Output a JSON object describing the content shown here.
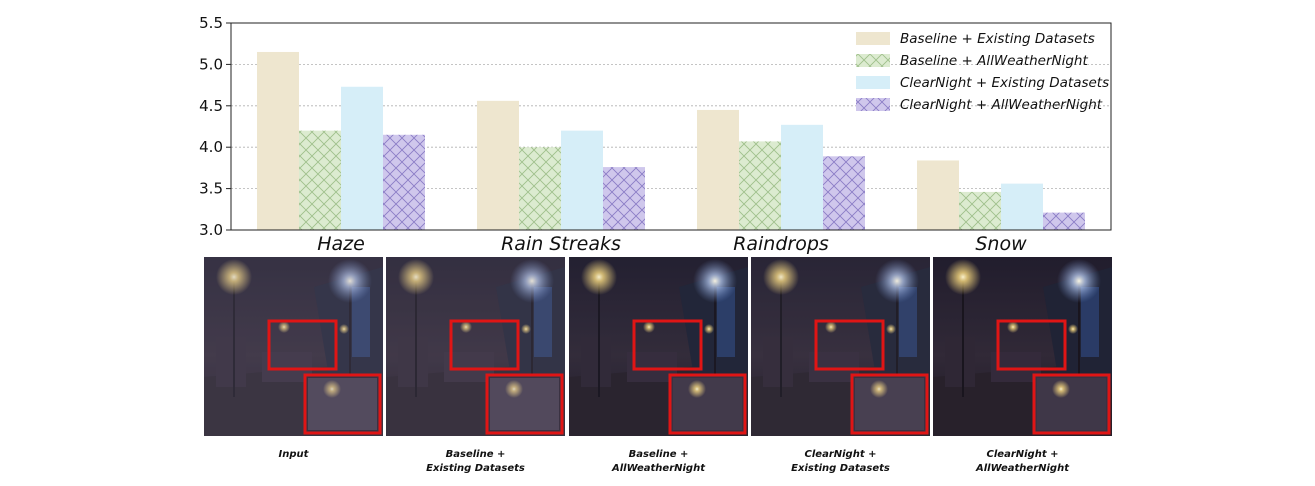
{
  "chart_data": {
    "type": "bar",
    "categories": [
      "Haze",
      "Rain Streaks",
      "Raindrops",
      "Snow"
    ],
    "series": [
      {
        "name": "Baseline + Existing Datasets",
        "values": [
          5.15,
          4.56,
          4.45,
          3.84
        ],
        "color": "#eee6cf",
        "pattern": "none"
      },
      {
        "name": "Baseline + AllWeatherNight",
        "values": [
          4.2,
          4.0,
          4.07,
          3.46
        ],
        "color": "#dcebd0",
        "pattern": "crosshatch"
      },
      {
        "name": "ClearNight + Existing Datasets",
        "values": [
          4.73,
          4.2,
          4.27,
          3.56
        ],
        "color": "#d6eef8",
        "pattern": "none"
      },
      {
        "name": "ClearNight + AllWeatherNight",
        "values": [
          4.15,
          3.76,
          3.89,
          3.21
        ],
        "color": "#cfc7ec",
        "pattern": "crosshatch"
      }
    ],
    "yticks": [
      "3.0",
      "3.5",
      "4.0",
      "4.5",
      "5.0",
      "5.5"
    ],
    "ylim": [
      3.0,
      5.5
    ],
    "grid": "horizontal dotted",
    "legend_position": "top-right",
    "title": "",
    "xlabel": "",
    "ylabel": ""
  },
  "panels": [
    {
      "caption_line1": "Input",
      "caption_line2": ""
    },
    {
      "caption_line1": "Baseline +",
      "caption_line2": "Existing Datasets"
    },
    {
      "caption_line1": "Baseline +",
      "caption_line2": "AllWeatherNight"
    },
    {
      "caption_line1": "ClearNight +",
      "caption_line2": "Existing Datasets"
    },
    {
      "caption_line1": "ClearNight +",
      "caption_line2": "AllWeatherNight"
    }
  ],
  "colors": {
    "highlight_box": "#e01515"
  }
}
